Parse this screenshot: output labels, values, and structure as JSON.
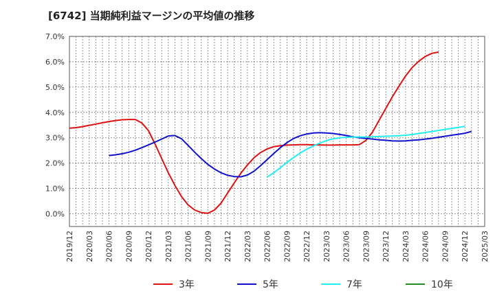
{
  "title": "[6742]  当期純利益マージンの平均値の推移",
  "chart_data": {
    "type": "line",
    "title": "[6742]  当期純利益マージンの平均値の推移",
    "xlabel": "",
    "ylabel": "",
    "ylim": [
      -0.5,
      7.0
    ],
    "grid": true,
    "legend": "bottom",
    "y_ticks": [
      0.0,
      1.0,
      2.0,
      3.0,
      4.0,
      5.0,
      6.0,
      7.0
    ],
    "y_tick_labels": [
      "0.0%",
      "1.0%",
      "2.0%",
      "3.0%",
      "4.0%",
      "5.0%",
      "6.0%",
      "7.0%"
    ],
    "x_tick_labels": [
      "2019/12",
      "2020/03",
      "2020/06",
      "2020/09",
      "2020/12",
      "2021/03",
      "2021/06",
      "2021/09",
      "2021/12",
      "2022/03",
      "2022/06",
      "2022/09",
      "2022/12",
      "2023/03",
      "2023/06",
      "2023/09",
      "2023/12",
      "2024/03",
      "2024/06",
      "2024/09",
      "2024/12",
      "2025/03"
    ],
    "series": [
      {
        "name": "3年",
        "color": "#dd1111",
        "start_index": 0,
        "values": [
          3.38,
          3.4,
          3.44,
          3.49,
          3.54,
          3.59,
          3.64,
          3.68,
          3.71,
          3.72,
          3.72,
          3.58,
          3.28,
          2.75,
          2.18,
          1.62,
          1.12,
          0.68,
          0.35,
          0.15,
          0.05,
          0.02,
          0.15,
          0.42,
          0.82,
          1.22,
          1.6,
          1.93,
          2.21,
          2.42,
          2.56,
          2.65,
          2.69,
          2.71,
          2.72,
          2.73,
          2.73,
          2.72,
          2.72,
          2.71,
          2.71,
          2.72,
          2.72,
          2.72,
          2.73,
          2.9,
          3.23,
          3.7,
          4.16,
          4.62,
          5.04,
          5.44,
          5.77,
          6.02,
          6.21,
          6.33,
          6.38
        ]
      },
      {
        "name": "5年",
        "color": "#1111cc",
        "start_index": 6,
        "values": [
          2.3,
          2.33,
          2.37,
          2.43,
          2.51,
          2.61,
          2.72,
          2.83,
          2.95,
          3.07,
          3.09,
          2.96,
          2.7,
          2.43,
          2.18,
          1.95,
          1.77,
          1.62,
          1.52,
          1.47,
          1.46,
          1.53,
          1.68,
          1.9,
          2.14,
          2.38,
          2.61,
          2.81,
          2.97,
          3.08,
          3.15,
          3.19,
          3.2,
          3.19,
          3.17,
          3.13,
          3.09,
          3.04,
          3.0,
          2.97,
          2.95,
          2.92,
          2.9,
          2.88,
          2.87,
          2.88,
          2.9,
          2.92,
          2.95,
          2.98,
          3.02,
          3.06,
          3.1,
          3.14,
          3.18,
          3.25
        ]
      },
      {
        "name": "7年",
        "color": "#22eeee",
        "start_index": 30,
        "values": [
          1.45,
          1.62,
          1.82,
          2.03,
          2.22,
          2.4,
          2.55,
          2.68,
          2.79,
          2.89,
          2.96,
          3.0,
          3.02,
          3.03,
          3.03,
          3.03,
          3.04,
          3.05,
          3.06,
          3.07,
          3.08,
          3.1,
          3.13,
          3.17,
          3.21,
          3.25,
          3.29,
          3.33,
          3.37,
          3.41,
          3.45
        ]
      },
      {
        "name": "10年",
        "color": "#228b22",
        "start_index": 0,
        "values": []
      }
    ]
  }
}
